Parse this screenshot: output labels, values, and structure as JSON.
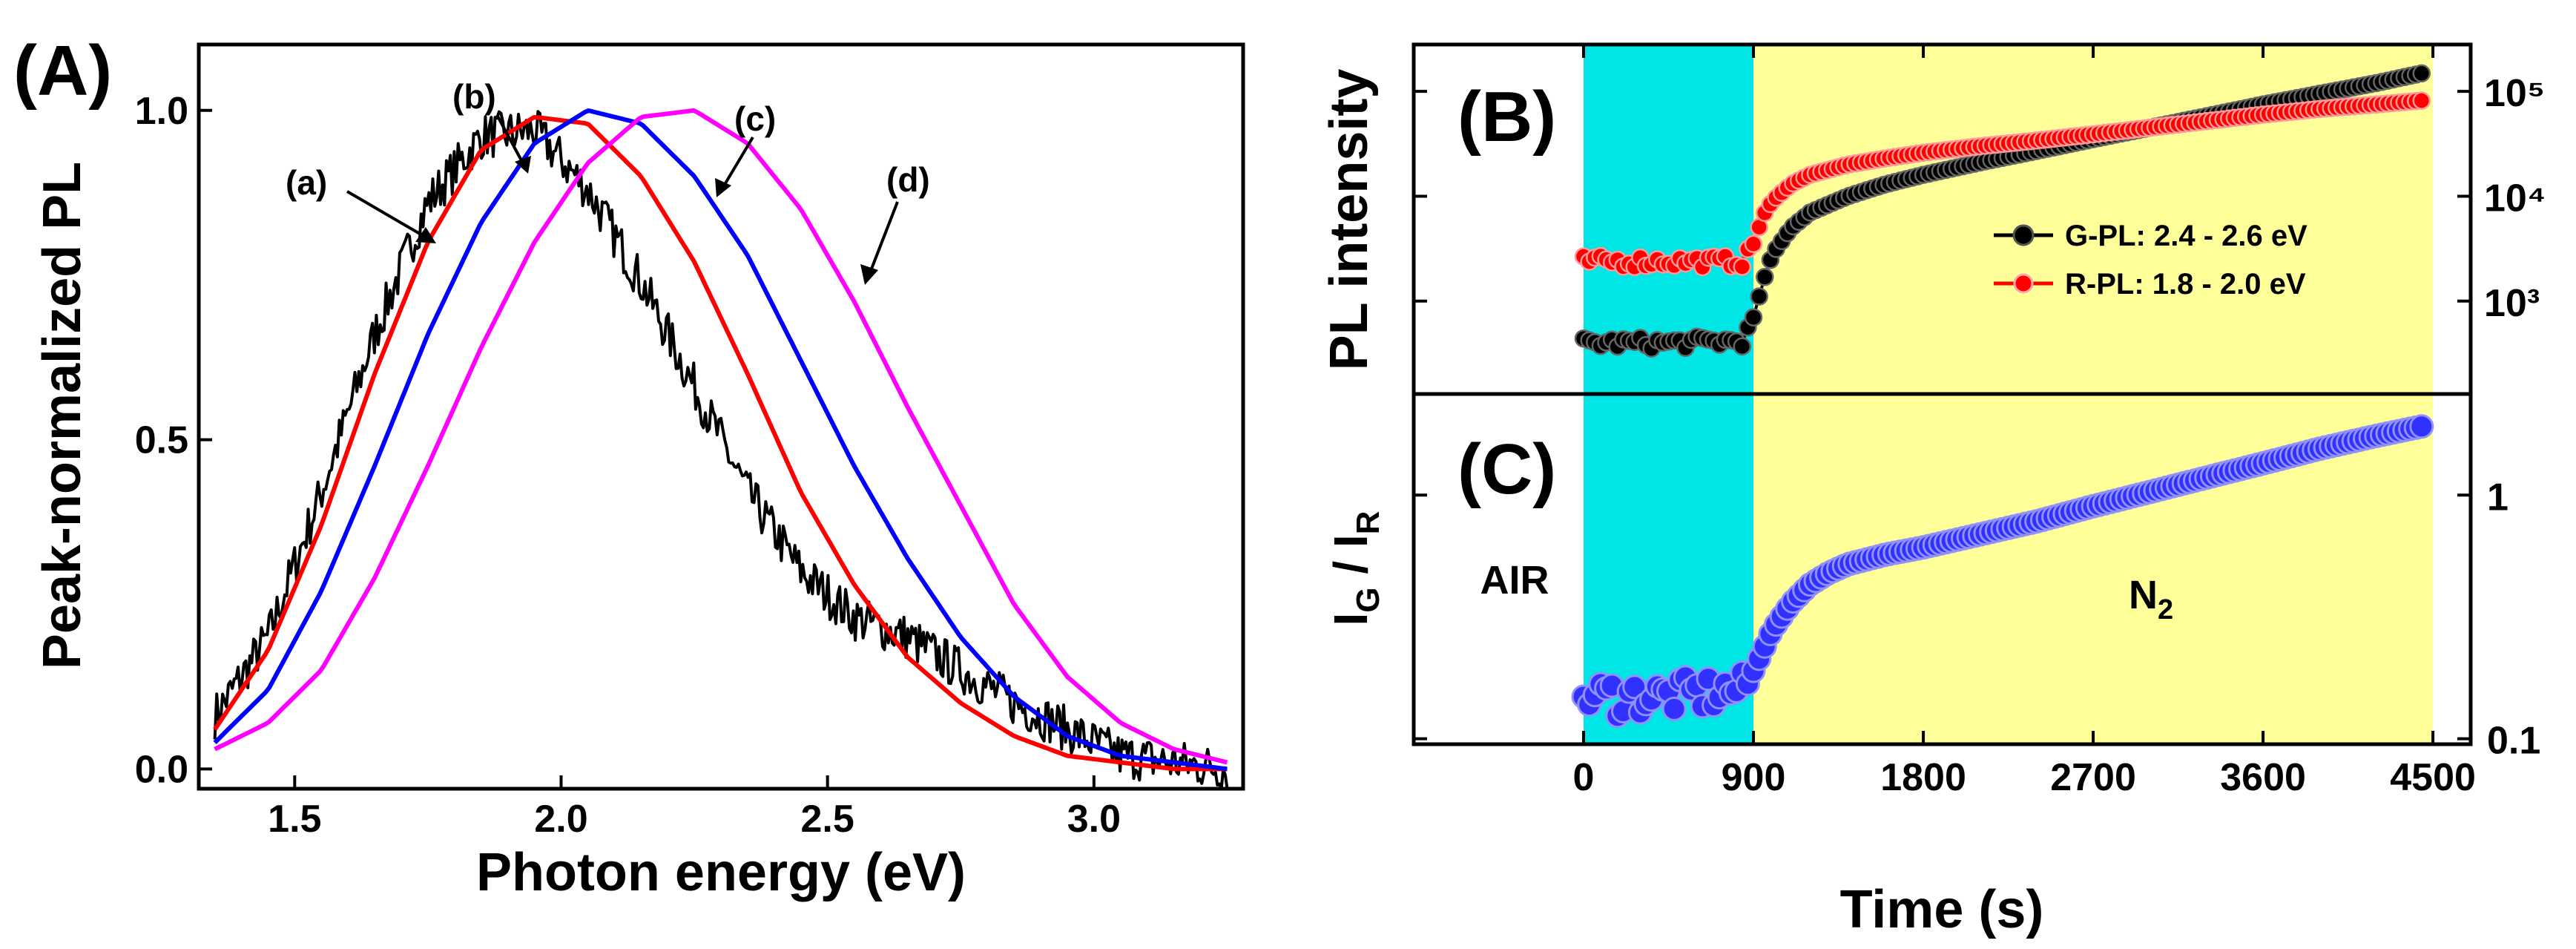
{
  "colors": {
    "black": "#000000",
    "red": "#ff0000",
    "blue": "#0000ff",
    "magenta": "#ff00ff",
    "air_band": "#00e5e5",
    "n2_band": "#ffff99",
    "blue_marker": "#2020ff"
  },
  "chart_data": [
    {
      "panel": "(A)",
      "type": "line",
      "xlabel": "Photon energy (eV)",
      "ylabel": "Peak-normalized PL",
      "xlim": [
        1.32,
        3.28
      ],
      "ylim": [
        -0.03,
        1.1
      ],
      "xticks": [
        "1.5",
        "2.0",
        "2.5",
        "3.0"
      ],
      "yticks": [
        "0.0",
        "0.5",
        "1.0"
      ],
      "series": [
        {
          "name": "(a)",
          "color": "#000000",
          "peak": 1.93,
          "sigma": 0.26,
          "noisy": true,
          "tail": "black"
        },
        {
          "name": "(b)",
          "color": "#ff0000",
          "peak": 2.06,
          "sigma": 0.3
        },
        {
          "name": "(c)",
          "color": "#0000ff",
          "peak": 2.18,
          "sigma": 0.32
        },
        {
          "name": "(d)",
          "color": "#ff00ff",
          "peak": 2.3,
          "sigma": 0.33
        }
      ],
      "x": [
        1.35,
        1.45,
        1.55,
        1.65,
        1.75,
        1.85,
        1.95,
        2.05,
        2.15,
        2.25,
        2.35,
        2.45,
        2.55,
        2.65,
        2.75,
        2.85,
        2.95,
        3.05,
        3.15,
        3.25
      ],
      "values": {
        "(a)": [
          0.08,
          0.2,
          0.42,
          0.66,
          0.86,
          0.96,
          0.97,
          0.88,
          0.74,
          0.58,
          0.42,
          0.3,
          0.23,
          0.2,
          0.15,
          0.1,
          0.06,
          0.02,
          0.01,
          0.0
        ],
        "(b)": [
          0.06,
          0.18,
          0.37,
          0.6,
          0.8,
          0.94,
          0.99,
          0.98,
          0.9,
          0.77,
          0.6,
          0.42,
          0.28,
          0.17,
          0.1,
          0.05,
          0.02,
          0.01,
          0.0,
          0.0
        ],
        "(c)": [
          0.04,
          0.12,
          0.27,
          0.46,
          0.66,
          0.83,
          0.95,
          1.0,
          0.98,
          0.9,
          0.78,
          0.62,
          0.46,
          0.32,
          0.2,
          0.11,
          0.05,
          0.02,
          0.01,
          0.0
        ],
        "(d)": [
          0.03,
          0.07,
          0.15,
          0.29,
          0.46,
          0.64,
          0.8,
          0.92,
          0.99,
          1.0,
          0.95,
          0.85,
          0.71,
          0.55,
          0.4,
          0.25,
          0.14,
          0.07,
          0.03,
          0.01
        ]
      }
    },
    {
      "panel": "(B)",
      "type": "scatter",
      "xlim": [
        -900,
        4700
      ],
      "ylim": [
        130,
        280000
      ],
      "yscale": "log",
      "ylabel": "PL intensity",
      "yticks": [
        "10³",
        "10⁴",
        "10⁵"
      ],
      "ytick_values": [
        1000,
        10000,
        100000
      ],
      "legend_position": "right",
      "series": [
        {
          "name": "G-PL: 2.4 - 2.6 eV",
          "color": "#000000"
        },
        {
          "name": "R-PL: 1.8 - 2.0 eV",
          "color": "#ff0000"
        }
      ],
      "x": [
        0,
        450,
        850,
        900,
        950,
        1000,
        1100,
        1200,
        1400,
        1600,
        1800,
        2100,
        2400,
        2700,
        3000,
        3300,
        3600,
        3900,
        4200,
        4450
      ],
      "values": {
        "G-PL: 2.4 - 2.6 eV": [
          400,
          400,
          420,
          700,
          1500,
          2800,
          5000,
          7000,
          10000,
          13000,
          16000,
          21000,
          27000,
          35000,
          45000,
          58000,
          75000,
          95000,
          120000,
          150000
        ],
        "R-PL: 1.8 - 2.0 eV": [
          2400,
          2400,
          2400,
          3500,
          6500,
          9000,
          13000,
          16000,
          20000,
          23000,
          26000,
          30000,
          34000,
          39000,
          45000,
          52000,
          60000,
          68000,
          75000,
          82000
        ]
      }
    },
    {
      "panel": "(C)",
      "type": "scatter",
      "xlabel": "Time (s)",
      "xlim": [
        -900,
        4700
      ],
      "xticks": [
        "0",
        "900",
        "1800",
        "2700",
        "3600",
        "4500"
      ],
      "xtick_values": [
        0,
        900,
        1800,
        2700,
        3600,
        4500
      ],
      "ylabel": "I_G / I_R",
      "ylabel_main": "I",
      "ylabel_sub1": "G",
      "ylabel_sep": " / I",
      "ylabel_sub2": "R",
      "yscale": "log",
      "ylim": [
        0.095,
        2.6
      ],
      "yticks": [
        "1",
        "0.1"
      ],
      "ytick_values": [
        1,
        0.1
      ],
      "regions": [
        {
          "label": "AIR",
          "from": 0,
          "to": 900,
          "color": "#00e5e5"
        },
        {
          "label": "N",
          "label_sub": "2",
          "from": 900,
          "to": 4500,
          "color": "#ffff99"
        }
      ],
      "series": [
        {
          "name": "I_G / I_R",
          "color": "#2020ff"
        }
      ],
      "x": [
        0,
        450,
        850,
        900,
        950,
        1000,
        1100,
        1200,
        1300,
        1400,
        1600,
        1800,
        2100,
        2400,
        2700,
        3000,
        3300,
        3600,
        3900,
        4200,
        4450
      ],
      "values": {
        "I_G / I_R": [
          0.15,
          0.15,
          0.16,
          0.19,
          0.23,
          0.28,
          0.36,
          0.43,
          0.48,
          0.52,
          0.57,
          0.61,
          0.69,
          0.78,
          0.9,
          1.03,
          1.18,
          1.35,
          1.55,
          1.75,
          1.92
        ]
      }
    }
  ]
}
